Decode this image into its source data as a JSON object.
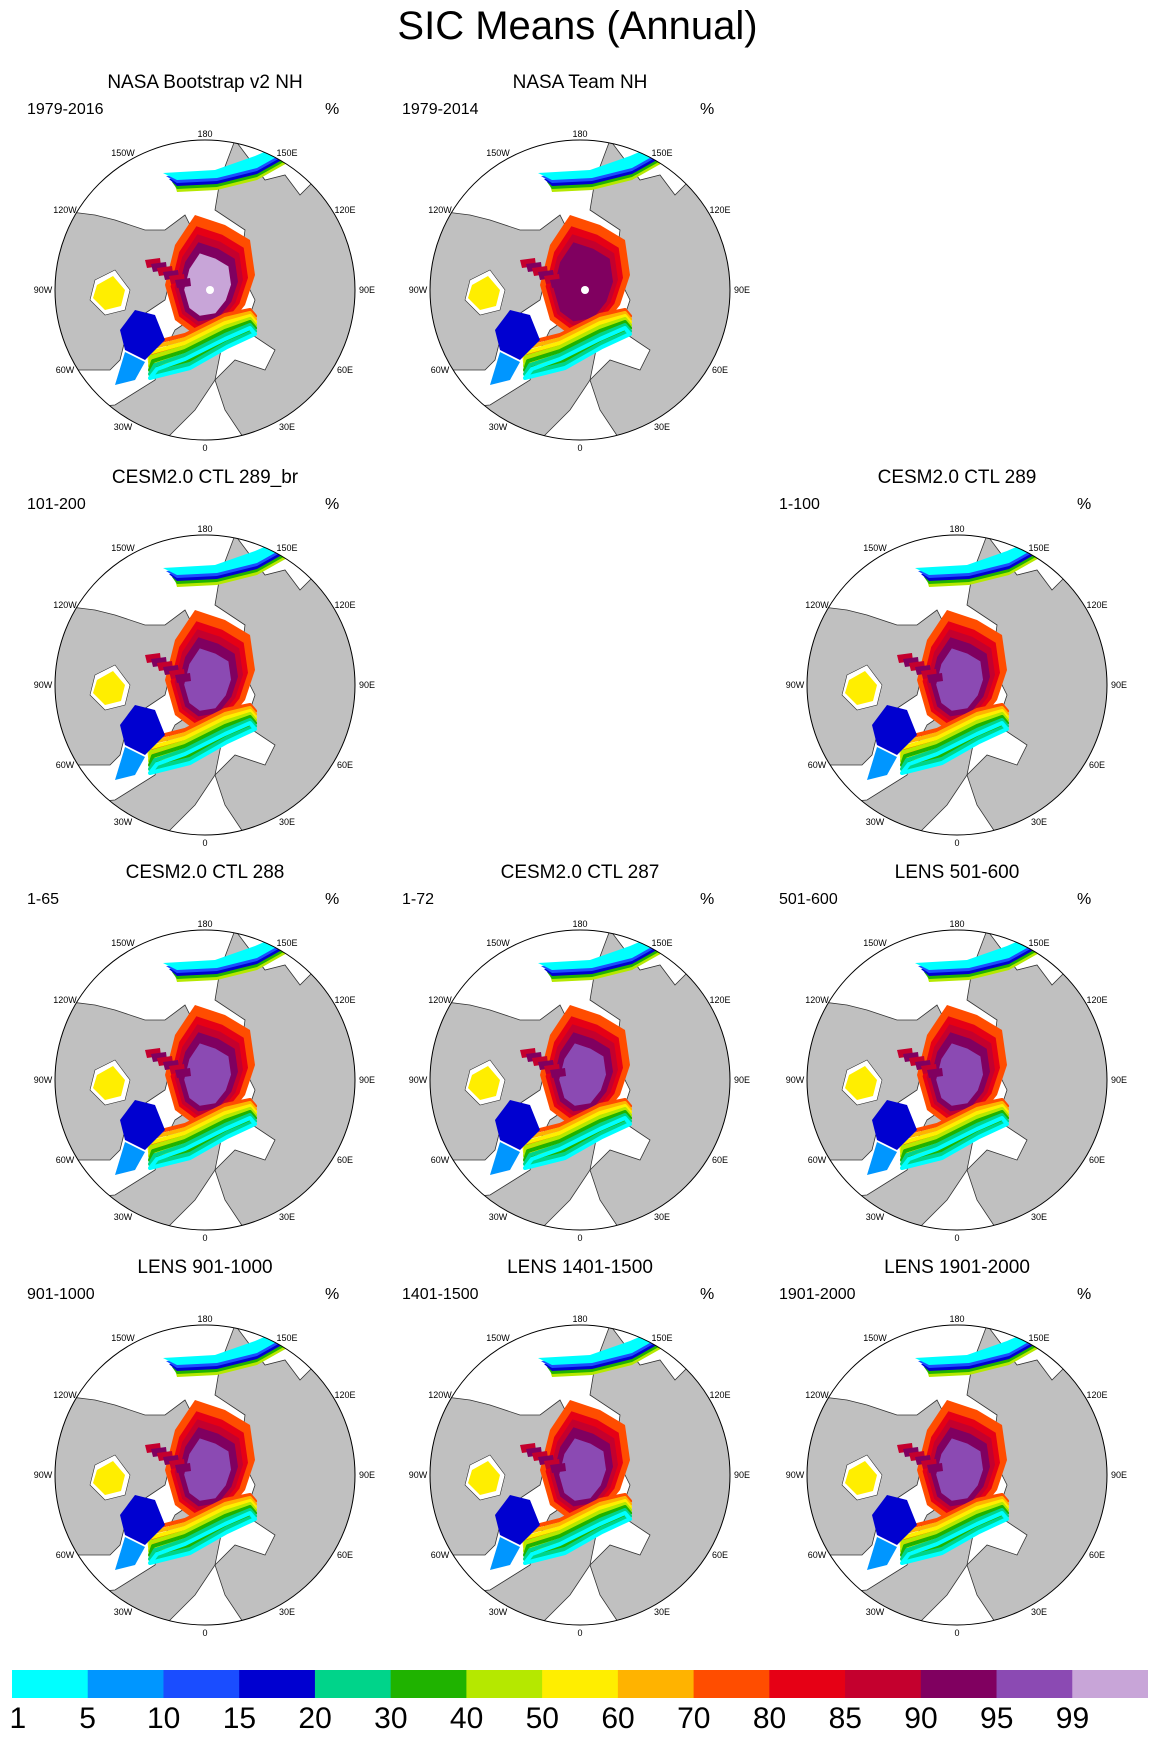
{
  "title": "SIC Means (Annual)",
  "unit": "%",
  "longitude_labels": [
    "180",
    "150E",
    "120E",
    "90E",
    "60E",
    "30E",
    "0",
    "30W",
    "60W",
    "90W",
    "120W",
    "150W"
  ],
  "panels": [
    {
      "title": "NASA Bootstrap v2 NH",
      "period": "1979-2016",
      "variant": "obs_bootstrap"
    },
    {
      "title": "NASA Team NH",
      "period": "1979-2014",
      "variant": "obs_team"
    },
    {
      "title": "CESM2.0 CTL 289_br",
      "period": "101-200",
      "variant": "model"
    },
    {
      "title": "CESM2.0 CTL 289",
      "period": "1-100",
      "variant": "model"
    },
    {
      "title": "CESM2.0 CTL 288",
      "period": "1-65",
      "variant": "model"
    },
    {
      "title": "CESM2.0 CTL 287",
      "period": "1-72",
      "variant": "model"
    },
    {
      "title": "LENS 501-600",
      "period": "501-600",
      "variant": "lens"
    },
    {
      "title": "LENS 901-1000",
      "period": "901-1000",
      "variant": "lens"
    },
    {
      "title": "LENS 1401-1500",
      "period": "1401-1500",
      "variant": "lens"
    },
    {
      "title": "LENS 1901-2000",
      "period": "1901-2000",
      "variant": "lens"
    }
  ],
  "colorbar": {
    "labels": [
      "1",
      "5",
      "10",
      "15",
      "20",
      "30",
      "40",
      "50",
      "60",
      "70",
      "80",
      "85",
      "90",
      "95",
      "99"
    ],
    "colors": [
      "#00ffff",
      "#0096ff",
      "#1a4dff",
      "#0000d0",
      "#00d48a",
      "#1fb300",
      "#b5e800",
      "#ffee00",
      "#ffb300",
      "#ff4d00",
      "#e60015",
      "#c4002e",
      "#800060",
      "#8b4ab3",
      "#c8a5d8"
    ]
  },
  "colors": {
    "land": "#c0c0c0",
    "ocean": "#ffffff",
    "coast": "#333333"
  }
}
